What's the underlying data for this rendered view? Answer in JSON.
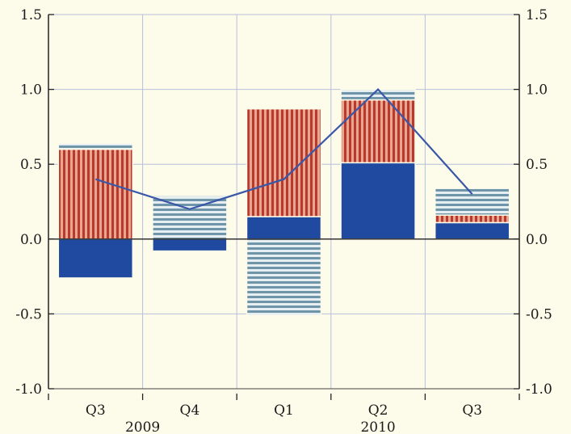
{
  "chart_data": {
    "type": "bar",
    "stacked": true,
    "categories": [
      "Q3",
      "Q4",
      "Q1",
      "Q2",
      "Q3"
    ],
    "years": [
      {
        "label": "2009",
        "categories": [
          "Q3",
          "Q4"
        ]
      },
      {
        "label": "2010",
        "categories": [
          "Q1",
          "Q2",
          "Q3"
        ]
      }
    ],
    "ylim": [
      -1.0,
      1.5
    ],
    "yticks": [
      "1.5",
      "1.0",
      "0.5",
      "0.0",
      "-0.5",
      "-1.0"
    ],
    "ytick_values": [
      1.5,
      1.0,
      0.5,
      0.0,
      -0.5,
      -1.0
    ],
    "grid": true,
    "series": [
      {
        "kind": "bar",
        "pattern": "solid",
        "color": "#1f4aa0",
        "values": [
          -0.26,
          -0.08,
          0.15,
          0.51,
          0.11
        ]
      },
      {
        "kind": "bar",
        "pattern": "vertical-stripes",
        "color": "#b83a2c",
        "values": [
          0.6,
          0.0,
          0.72,
          0.42,
          0.05
        ]
      },
      {
        "kind": "bar",
        "pattern": "horizontal-stripes",
        "color": "#6f95a8",
        "values": [
          0.04,
          0.29,
          -0.51,
          0.07,
          0.18
        ]
      },
      {
        "kind": "line",
        "color": "#3a57a8",
        "values": [
          0.4,
          0.2,
          0.4,
          1.0,
          0.3
        ]
      }
    ]
  }
}
